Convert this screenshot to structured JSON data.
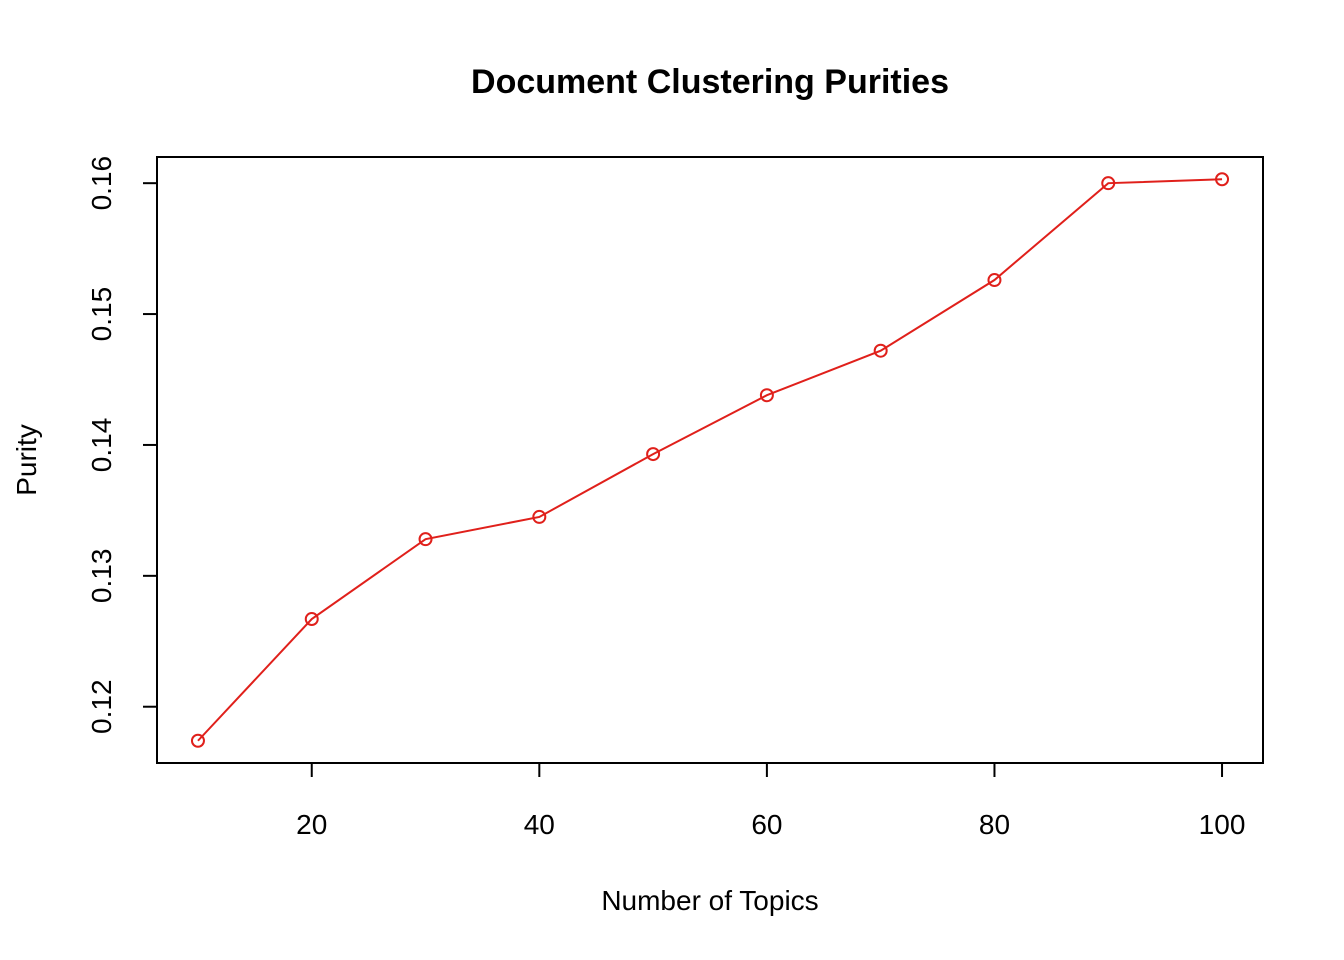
{
  "chart_data": {
    "type": "line",
    "title": "Document Clustering Purities",
    "xlabel": "Number of Topics",
    "ylabel": "Purity",
    "x": [
      10,
      20,
      30,
      40,
      50,
      60,
      70,
      80,
      90,
      100
    ],
    "series": [
      {
        "values": [
          0.1174,
          0.1267,
          0.1328,
          0.1345,
          0.1393,
          0.1438,
          0.1472,
          0.1526,
          0.16,
          0.1603
        ]
      }
    ],
    "xlim": [
      6.4,
      103.6
    ],
    "ylim": [
      0.1157,
      0.162
    ],
    "x_ticks": [
      20,
      40,
      60,
      80,
      100
    ],
    "y_ticks": [
      0.12,
      0.13,
      0.14,
      0.15,
      0.16
    ],
    "x_tick_labels": [
      "20",
      "40",
      "60",
      "80",
      "100"
    ],
    "y_tick_labels": [
      "0.12",
      "0.13",
      "0.14",
      "0.15",
      "0.16"
    ],
    "grid": false,
    "legend": "none",
    "line_color": "#e0201b",
    "marker": "open-circle"
  }
}
